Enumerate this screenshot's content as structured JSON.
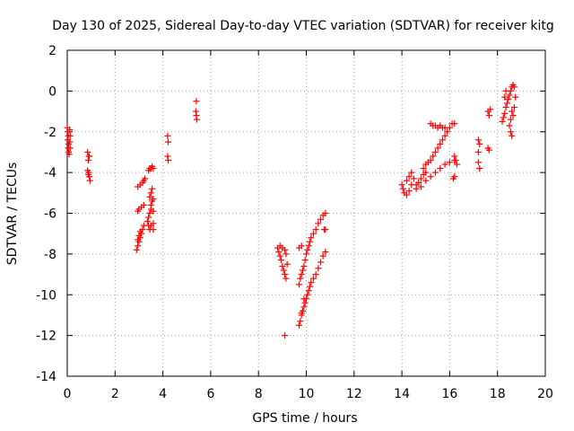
{
  "chart_data": {
    "type": "scatter",
    "title": "Day 130 of 2025, Sidereal Day-to-day VTEC variation (SDTVAR) for receiver kitg",
    "xlabel": "GPS time / hours",
    "ylabel": "SDTVAR / TECUs",
    "xlim": [
      0,
      20
    ],
    "ylim": [
      -14,
      2
    ],
    "xticks": [
      0,
      2,
      4,
      6,
      8,
      10,
      12,
      14,
      16,
      18,
      20
    ],
    "yticks": [
      2,
      0,
      -2,
      -4,
      -6,
      -8,
      -10,
      -12,
      -14
    ],
    "grid": true,
    "marker": "plus",
    "color": "#ff0000",
    "series": [
      {
        "name": "SDTVAR",
        "points": [
          [
            0.0,
            -1.8
          ],
          [
            0.02,
            -2.0
          ],
          [
            0.04,
            -2.2
          ],
          [
            0.02,
            -2.4
          ],
          [
            0.05,
            -2.6
          ],
          [
            0.03,
            -2.8
          ],
          [
            0.06,
            -3.0
          ],
          [
            0.1,
            -1.9
          ],
          [
            0.12,
            -2.2
          ],
          [
            0.1,
            -2.5
          ],
          [
            0.12,
            -2.8
          ],
          [
            0.08,
            -3.1
          ],
          [
            0.85,
            -3.0
          ],
          [
            0.9,
            -3.2
          ],
          [
            0.88,
            -3.4
          ],
          [
            0.92,
            -3.2
          ],
          [
            0.85,
            -3.9
          ],
          [
            0.9,
            -4.0
          ],
          [
            0.92,
            -4.2
          ],
          [
            0.95,
            -4.4
          ],
          [
            0.88,
            -4.1
          ],
          [
            2.9,
            -7.8
          ],
          [
            2.95,
            -7.6
          ],
          [
            3.0,
            -7.4
          ],
          [
            3.05,
            -7.2
          ],
          [
            3.1,
            -7.0
          ],
          [
            3.15,
            -6.8
          ],
          [
            3.2,
            -6.6
          ],
          [
            3.0,
            -7.1
          ],
          [
            2.95,
            -7.3
          ],
          [
            3.05,
            -6.9
          ],
          [
            2.95,
            -5.9
          ],
          [
            3.0,
            -5.8
          ],
          [
            3.1,
            -5.7
          ],
          [
            3.2,
            -5.6
          ],
          [
            2.95,
            -4.7
          ],
          [
            3.05,
            -4.6
          ],
          [
            3.15,
            -4.5
          ],
          [
            3.2,
            -4.4
          ],
          [
            3.25,
            -4.3
          ],
          [
            3.35,
            -6.4
          ],
          [
            3.4,
            -6.2
          ],
          [
            3.45,
            -6.0
          ],
          [
            3.5,
            -5.8
          ],
          [
            3.5,
            -5.6
          ],
          [
            3.55,
            -5.4
          ],
          [
            3.45,
            -5.2
          ],
          [
            3.5,
            -5.0
          ],
          [
            3.55,
            -4.8
          ],
          [
            3.6,
            -5.3
          ],
          [
            3.6,
            -5.9
          ],
          [
            3.6,
            -6.5
          ],
          [
            3.6,
            -6.8
          ],
          [
            3.4,
            -6.6
          ],
          [
            3.45,
            -6.8
          ],
          [
            3.5,
            -6.6
          ],
          [
            3.4,
            -3.9
          ],
          [
            3.45,
            -3.8
          ],
          [
            3.5,
            -3.8
          ],
          [
            3.55,
            -3.7
          ],
          [
            3.6,
            -3.8
          ],
          [
            4.2,
            -2.2
          ],
          [
            4.22,
            -2.5
          ],
          [
            4.2,
            -3.2
          ],
          [
            4.22,
            -3.4
          ],
          [
            5.4,
            -0.5
          ],
          [
            5.38,
            -1.0
          ],
          [
            5.4,
            -1.2
          ],
          [
            5.42,
            -1.4
          ],
          [
            8.8,
            -7.7
          ],
          [
            8.85,
            -7.9
          ],
          [
            8.9,
            -8.1
          ],
          [
            8.95,
            -8.3
          ],
          [
            9.0,
            -8.6
          ],
          [
            9.05,
            -8.8
          ],
          [
            9.1,
            -9.0
          ],
          [
            9.15,
            -9.2
          ],
          [
            8.9,
            -7.6
          ],
          [
            9.0,
            -7.7
          ],
          [
            9.1,
            -7.8
          ],
          [
            9.15,
            -8.0
          ],
          [
            9.2,
            -8.5
          ],
          [
            9.1,
            -12.0
          ],
          [
            9.7,
            -11.5
          ],
          [
            9.75,
            -11.3
          ],
          [
            9.8,
            -11.0
          ],
          [
            9.85,
            -10.8
          ],
          [
            9.9,
            -10.6
          ],
          [
            9.95,
            -10.4
          ],
          [
            10.0,
            -10.2
          ],
          [
            10.05,
            -10.0
          ],
          [
            10.1,
            -9.8
          ],
          [
            10.15,
            -9.6
          ],
          [
            10.2,
            -9.4
          ],
          [
            10.3,
            -9.2
          ],
          [
            10.4,
            -9.0
          ],
          [
            10.5,
            -8.7
          ],
          [
            10.6,
            -8.4
          ],
          [
            10.7,
            -8.1
          ],
          [
            10.8,
            -7.9
          ],
          [
            9.8,
            -10.9
          ],
          [
            9.9,
            -10.2
          ],
          [
            9.7,
            -9.5
          ],
          [
            9.75,
            -9.2
          ],
          [
            9.8,
            -9.0
          ],
          [
            9.85,
            -8.8
          ],
          [
            9.9,
            -8.6
          ],
          [
            9.95,
            -8.3
          ],
          [
            10.0,
            -8.0
          ],
          [
            10.05,
            -7.8
          ],
          [
            10.1,
            -7.6
          ],
          [
            10.15,
            -7.4
          ],
          [
            10.2,
            -7.2
          ],
          [
            10.3,
            -7.0
          ],
          [
            10.4,
            -6.8
          ],
          [
            10.5,
            -6.5
          ],
          [
            10.6,
            -6.3
          ],
          [
            10.7,
            -6.1
          ],
          [
            10.8,
            -6.0
          ],
          [
            9.7,
            -7.7
          ],
          [
            9.8,
            -7.6
          ],
          [
            10.75,
            -6.8
          ],
          [
            10.8,
            -6.8
          ],
          [
            14.0,
            -4.6
          ],
          [
            14.05,
            -4.8
          ],
          [
            14.1,
            -5.0
          ],
          [
            14.2,
            -5.1
          ],
          [
            14.3,
            -4.9
          ],
          [
            14.2,
            -4.4
          ],
          [
            14.3,
            -4.2
          ],
          [
            14.4,
            -4.0
          ],
          [
            14.5,
            -4.3
          ],
          [
            14.6,
            -4.6
          ],
          [
            14.7,
            -4.5
          ],
          [
            14.8,
            -4.3
          ],
          [
            14.9,
            -4.1
          ],
          [
            15.0,
            -4.0
          ],
          [
            14.4,
            -4.6
          ],
          [
            14.6,
            -4.8
          ],
          [
            14.8,
            -4.7
          ],
          [
            15.0,
            -4.4
          ],
          [
            15.2,
            -4.2
          ],
          [
            15.4,
            -4.0
          ],
          [
            15.6,
            -3.8
          ],
          [
            15.8,
            -3.6
          ],
          [
            16.0,
            -3.5
          ],
          [
            16.2,
            -3.4
          ],
          [
            14.9,
            -3.8
          ],
          [
            15.0,
            -3.6
          ],
          [
            15.1,
            -3.5
          ],
          [
            15.2,
            -3.4
          ],
          [
            15.3,
            -3.2
          ],
          [
            15.4,
            -3.0
          ],
          [
            15.5,
            -2.8
          ],
          [
            15.6,
            -2.6
          ],
          [
            15.7,
            -2.4
          ],
          [
            15.8,
            -2.2
          ],
          [
            15.9,
            -2.0
          ],
          [
            16.0,
            -1.8
          ],
          [
            16.1,
            -1.6
          ],
          [
            16.2,
            -1.6
          ],
          [
            15.2,
            -1.6
          ],
          [
            15.3,
            -1.7
          ],
          [
            15.4,
            -1.7
          ],
          [
            15.5,
            -1.8
          ],
          [
            15.6,
            -1.7
          ],
          [
            15.7,
            -1.8
          ],
          [
            15.8,
            -1.8
          ],
          [
            16.2,
            -3.2
          ],
          [
            16.25,
            -3.4
          ],
          [
            16.3,
            -3.6
          ],
          [
            16.15,
            -4.3
          ],
          [
            16.2,
            -4.2
          ],
          [
            17.2,
            -2.4
          ],
          [
            17.25,
            -2.6
          ],
          [
            17.2,
            -3.0
          ],
          [
            17.2,
            -3.5
          ],
          [
            17.25,
            -3.8
          ],
          [
            17.6,
            -1.0
          ],
          [
            17.65,
            -1.2
          ],
          [
            17.7,
            -0.9
          ],
          [
            17.6,
            -2.8
          ],
          [
            17.65,
            -2.9
          ],
          [
            18.2,
            -1.5
          ],
          [
            18.25,
            -1.3
          ],
          [
            18.3,
            -1.1
          ],
          [
            18.35,
            -0.8
          ],
          [
            18.4,
            -0.6
          ],
          [
            18.45,
            -0.4
          ],
          [
            18.5,
            -0.2
          ],
          [
            18.55,
            0.0
          ],
          [
            18.6,
            0.2
          ],
          [
            18.65,
            0.3
          ],
          [
            18.7,
            0.2
          ],
          [
            18.75,
            -0.3
          ],
          [
            18.6,
            -1.0
          ],
          [
            18.55,
            -1.4
          ],
          [
            18.5,
            -1.7
          ],
          [
            18.55,
            -2.0
          ],
          [
            18.6,
            -2.2
          ],
          [
            18.7,
            -0.8
          ],
          [
            18.65,
            -1.2
          ],
          [
            18.3,
            -0.3
          ],
          [
            18.35,
            0.0
          ]
        ]
      }
    ]
  }
}
